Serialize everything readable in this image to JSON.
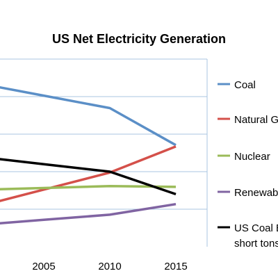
{
  "chart_data": {
    "type": "line",
    "title": "US Net Electricity Generation",
    "x": [
      "2005",
      "2010",
      "2015"
    ],
    "series": [
      {
        "name": "Coal",
        "color": "#5b8fc7",
        "values": [
          2013,
          1847,
          1354
        ]
      },
      {
        "name": "Natural Gas",
        "color": "#d4504a",
        "values": [
          761,
          988,
          1335
        ]
      },
      {
        "name": "Nuclear",
        "color": "#9bbb59",
        "values": [
          782,
          807,
          797
        ]
      },
      {
        "name": "Renewables",
        "color": "#8064a2",
        "values": [
          358,
          427,
          568
        ]
      },
      {
        "name": "US Coal Exports (million short tons)",
        "color": "#000000",
        "values": [
          1100,
          1000,
          700
        ]
      }
    ],
    "legend_labels": [
      "Coal",
      "Natural Gas",
      "Nuclear",
      "Renewables",
      "US Coal Exports (million",
      "short tons)"
    ],
    "ylim": [
      0,
      2500
    ],
    "grid": true,
    "legend_position": "right"
  }
}
